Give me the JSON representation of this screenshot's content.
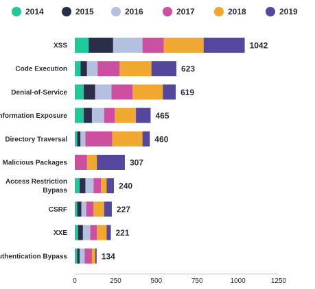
{
  "chart_data": {
    "type": "bar",
    "orientation": "horizontal",
    "stacked": true,
    "categories": [
      "XSS",
      "Code Execution",
      "Denial-of-Service",
      "Information Exposure",
      "Directory Traversal",
      "Malicious Packages",
      "Access Restriction Bypass",
      "CSRF",
      "XXE",
      "Authentication Bypass"
    ],
    "series": [
      {
        "name": "2014",
        "color": "#1ec99a",
        "values": [
          85,
          35,
          55,
          55,
          15,
          0,
          30,
          15,
          20,
          15
        ]
      },
      {
        "name": "2015",
        "color": "#2b2e4a",
        "values": [
          150,
          40,
          70,
          50,
          20,
          0,
          35,
          25,
          30,
          15
        ]
      },
      {
        "name": "2016",
        "color": "#b3c0e0",
        "values": [
          180,
          65,
          100,
          75,
          30,
          0,
          50,
          30,
          45,
          30
        ]
      },
      {
        "name": "2017",
        "color": "#cc4fa2",
        "values": [
          130,
          135,
          130,
          65,
          165,
          75,
          45,
          45,
          40,
          45
        ]
      },
      {
        "name": "2018",
        "color": "#f0a830",
        "values": [
          245,
          195,
          185,
          130,
          185,
          60,
          35,
          65,
          60,
          20
        ]
      },
      {
        "name": "2019",
        "color": "#55479e",
        "values": [
          252,
          153,
          79,
          90,
          45,
          172,
          45,
          47,
          26,
          9
        ]
      }
    ],
    "totals": [
      1042,
      623,
      619,
      465,
      460,
      307,
      240,
      227,
      221,
      134
    ],
    "xlim": [
      0,
      1250
    ],
    "xticks": [
      0,
      250,
      500,
      750,
      1000,
      1250
    ],
    "grid": false,
    "legend_position": "top",
    "title": "",
    "xlabel": "",
    "ylabel": ""
  }
}
